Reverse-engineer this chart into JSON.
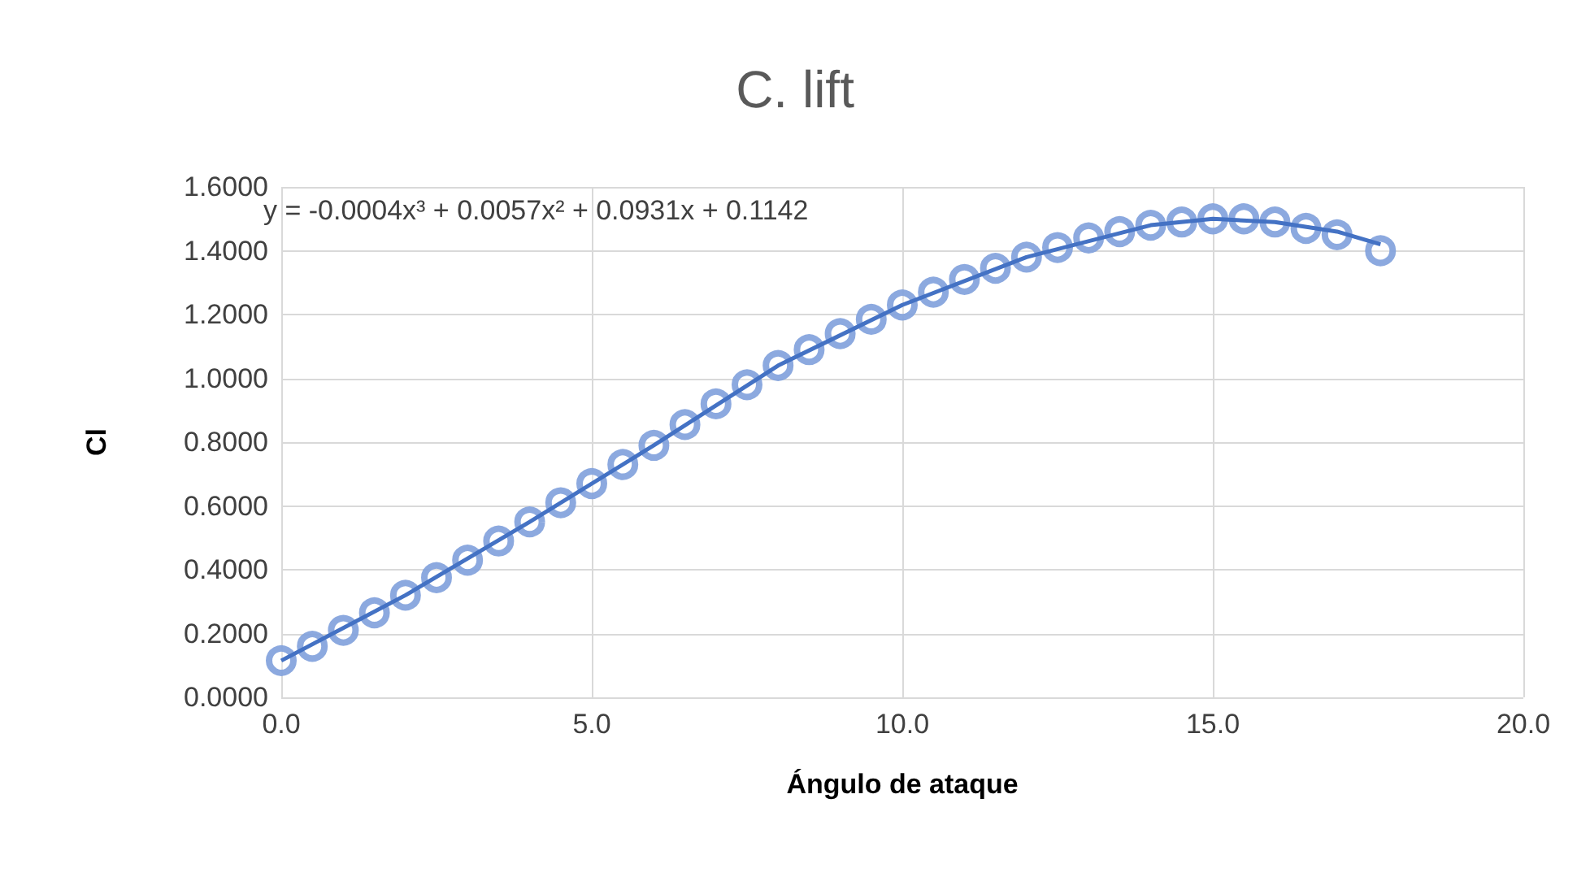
{
  "chart_data": {
    "type": "scatter",
    "title": "C. lift",
    "xlabel": "Ángulo de ataque",
    "ylabel": "Cl",
    "annotations": [
      "y = -0.0004x³ + 0.0057x² + 0.0931x + 0.1142"
    ],
    "xlim": [
      0,
      20
    ],
    "xticks": [
      {
        "value": 0,
        "label": "0.0"
      },
      {
        "value": 5,
        "label": "5.0"
      },
      {
        "value": 10,
        "label": "10.0"
      },
      {
        "value": 15,
        "label": "15.0"
      },
      {
        "value": 20,
        "label": "20.0"
      }
    ],
    "ylim": [
      0,
      1.6
    ],
    "yticks": [
      {
        "value": 0,
        "label": "0.0000"
      },
      {
        "value": 0.2,
        "label": "0.2000"
      },
      {
        "value": 0.4,
        "label": "0.4000"
      },
      {
        "value": 0.6,
        "label": "0.6000"
      },
      {
        "value": 0.8,
        "label": "0.8000"
      },
      {
        "value": 1,
        "label": "1.0000"
      },
      {
        "value": 1.2,
        "label": "1.2000"
      },
      {
        "value": 1.4,
        "label": "1.4000"
      },
      {
        "value": 1.6,
        "label": "1.6000"
      }
    ],
    "grid": true,
    "marker": "circle",
    "series": [
      {
        "color": "#7fa0dc",
        "x": [
          0,
          0.5,
          1,
          1.5,
          2,
          2.5,
          3,
          3.5,
          4,
          4.5,
          5,
          5.5,
          6,
          6.5,
          7,
          7.5,
          8,
          8.5,
          9,
          9.5,
          10,
          10.5,
          11,
          11.5,
          12,
          12.5,
          13,
          13.5,
          14,
          14.5,
          15,
          15.5,
          16,
          16.5,
          17,
          17.7
        ],
        "values": [
          0.115,
          0.16,
          0.21,
          0.265,
          0.32,
          0.375,
          0.43,
          0.49,
          0.55,
          0.61,
          0.67,
          0.73,
          0.79,
          0.855,
          0.92,
          0.98,
          1.04,
          1.09,
          1.14,
          1.185,
          1.23,
          1.27,
          1.31,
          1.345,
          1.38,
          1.41,
          1.44,
          1.46,
          1.48,
          1.49,
          1.5,
          1.5,
          1.49,
          1.47,
          1.45,
          1.4
        ]
      },
      {
        "type": "line",
        "color": "#4472c4",
        "marker": "none",
        "x": [
          0,
          2,
          4,
          6,
          8,
          10,
          12,
          14,
          15,
          16,
          17,
          17.7
        ],
        "values": [
          0.115,
          0.32,
          0.55,
          0.79,
          1.04,
          1.23,
          1.38,
          1.48,
          1.5,
          1.49,
          1.46,
          1.42
        ]
      }
    ]
  }
}
